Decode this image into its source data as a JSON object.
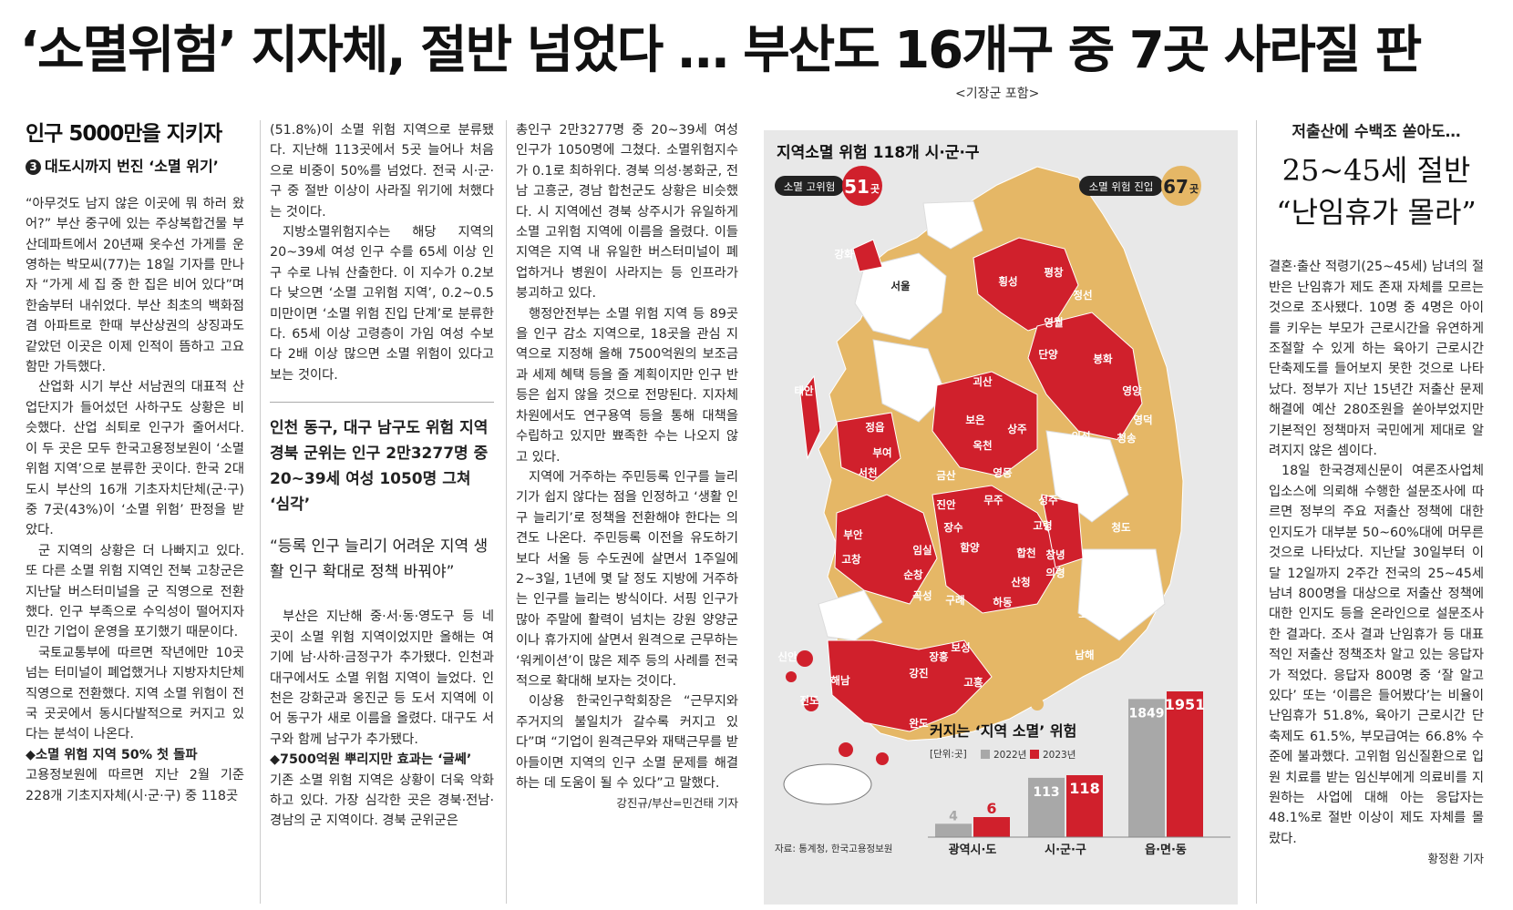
{
  "headline": "‘소멸위험’ 지자체, 절반 넘었다 … 부산도 16개구 중 7곳 사라질 판",
  "subhead": "<기장군 포함>",
  "col1": {
    "series_title": "인구 5000만을 지키자",
    "series_no": "3",
    "series_sub": "대도시까지 번진 ‘소멸 위기’",
    "paras": [
      "“아무것도 남지 않은 이곳에 뭐 하러 왔어?” 부산 중구에 있는 주상복합건물 부산데파트에서 20년째 옷수선 가게를 운영하는 박모씨(77)는 18일 기자를 만나자 “가게 세 집 중 한 집은 비어 있다”며 한숨부터 내쉬었다. 부산 최초의 백화점 겸 아파트로 한때 부산상권의 상징과도 같았던 이곳은 이제 인적이 뜸하고 고요함만 가득했다.",
      "산업화 시기 부산 서남권의 대표적 산업단지가 들어섰던 사하구도 상황은 비슷했다. 산업 쇠퇴로 인구가 줄어서다. 이 두 곳은 모두 한국고용정보원이 ‘소멸 위험 지역’으로 분류한 곳이다. 한국 2대 도시 부산의 16개 기초자치단체(군·구) 중 7곳(43%)이 ‘소멸 위험’ 판정을 받았다.",
      "군 지역의 상황은 더 나빠지고 있다. 또 다른 소멸 위험 지역인 전북 고창군은 지난달 버스터미널을 군 직영으로 전환했다. 인구 부족으로 수익성이 떨어지자 민간 기업이 운영을 포기했기 때문이다.",
      "국토교통부에 따르면 작년에만 10곳 넘는 터미널이 폐업했거나 지방자치단체 직영으로 전환했다. 지역 소멸 위험이 전국 곳곳에서 동시다발적으로 커지고 있다는 분석이 나온다."
    ],
    "diamond": "◆소멸 위험 지역 50% 첫 돌파",
    "tail": "고용정보원에 따르면 지난 2월 기준 228개 기초지자체(시·군·구) 중 118곳"
  },
  "col2": {
    "paras_top": [
      "(51.8%)이 소멸 위험 지역으로 분류됐다. 지난해 113곳에서 5곳 늘어나 처음으로 비중이 50%를 넘었다. 전국 시·군·구 중 절반 이상이 사라질 위기에 처했다는 것이다.",
      "지방소멸위험지수는 해당 지역의 20~39세 여성 인구 수를 65세 이상 인구 수로 나눠 산출한다. 이 지수가 0.2보다 낮으면 ‘소멸 고위험 지역’, 0.2~0.5 미만이면 ‘소멸 위험 진입 단계’로 분류한다. 65세 이상 고령층이 가임 여성 수보다 2배 이상 많으면 소멸 위험이 있다고 보는 것이다."
    ],
    "pull1": "인천 동구, 대구 남구도 위험 지역 경북 군위는 인구 2만3277명 중 20~39세 여성 1050명 그쳐 ‘심각’",
    "pull2": "“등록 인구 늘리기 어려운 지역 생활 인구 확대로 정책 바꿔야”",
    "paras_bottom": [
      "부산은 지난해 중·서·동·영도구 등 네 곳이 소멸 위험 지역이었지만 올해는 여기에 남·사하·금정구가 추가됐다. 인천과 대구에서도 소멸 위험 지역이 늘었다. 인천은 강화군과 옹진군 등 도서 지역에 이어 동구가 새로 이름을 올렸다. 대구도 서구와 함께 남구가 추가됐다."
    ],
    "diamond": "◆7500억원 뿌리지만 효과는 ‘글쎄’",
    "tail": "기존 소멸 위험 지역은 상황이 더욱 악화하고 있다. 가장 심각한 곳은 경북·전남·경남의 군 지역이다. 경북 군위군은"
  },
  "col3": {
    "paras": [
      "총인구 2만3277명 중 20~39세 여성 인구가 1050명에 그쳤다. 소멸위험지수가 0.1로 최하위다. 경북 의성·봉화군, 전남 고흥군, 경남 합천군도 상황은 비슷했다. 시 지역에선 경북 상주시가 유일하게 소멸 고위험 지역에 이름을 올렸다. 이들 지역은 지역 내 유일한 버스터미널이 폐업하거나 병원이 사라지는 등 인프라가 붕괴하고 있다.",
      "행정안전부는 소멸 위험 지역 등 89곳을 인구 감소 지역으로, 18곳을 관심 지역으로 지정해 올해 7500억원의 보조금과 세제 혜택 등을 줄 계획이지만 인구 반등은 쉽지 않을 것으로 전망된다. 지자체 차원에서도 연구용역 등을 통해 대책을 수립하고 있지만 뾰족한 수는 나오지 않고 있다.",
      "지역에 거주하는 주민등록 인구를 늘리기가 쉽지 않다는 점을 인정하고 ‘생활 인구 늘리기’로 정책을 전환해야 한다는 의견도 나온다. 주민등록 이전을 유도하기보다 서울 등 수도권에 살면서 1주일에 2~3일, 1년에 몇 달 정도 지방에 거주하는 인구를 늘리는 방식이다. 서핑 인구가 많아 주말에 활력이 넘치는 강원 양양군이나 휴가지에 살면서 원격으로 근무하는 ‘워케이션’이 많은 제주 등의 사례를 전국적으로 확대해 보자는 것이다.",
      "이상용 한국인구학회장은 “근무지와 주거지의 불일치가 갈수록 커지고 있다”며 “기업이 원격근무와 재택근무를 받아들이면 지역의 인구 소멸 문제를 해결하는 데 도움이 될 수 있다”고 말했다."
    ],
    "byline": "강진규/부산=민건태 기자"
  },
  "infographic": {
    "title": "지역소멸 위험 118개 시·군·구",
    "badge_high_label": "소멸 고위험",
    "badge_high_value": "51",
    "badge_high_unit": "곳",
    "badge_entry_label": "소멸 위험 진입",
    "badge_entry_value": "67",
    "badge_entry_unit": "곳",
    "colors": {
      "high": "#d0202c",
      "entry": "#e5b766",
      "none": "#ffffff",
      "bg": "#e8e8e8",
      "bar2022": "#a8a8a8"
    },
    "map_labels": [
      "강화",
      "서울",
      "횡성",
      "평창",
      "정선",
      "영월",
      "단양",
      "봉화",
      "태안",
      "괴산",
      "영양",
      "보은",
      "상주",
      "의성",
      "영덕",
      "청송",
      "정읍",
      "옥천",
      "부여",
      "서천",
      "금산",
      "영동",
      "군위",
      "진안",
      "무주",
      "성주",
      "고령",
      "부안",
      "장수",
      "창녕",
      "청도",
      "임실",
      "함양",
      "합천",
      "고창",
      "순창",
      "산청",
      "의령",
      "곡성",
      "구례",
      "하동",
      "함평",
      "고성",
      "신안",
      "장흥",
      "보성",
      "남해",
      "해남",
      "강진",
      "고흥",
      "진도",
      "완도"
    ],
    "source": "자료: 통계청, 한국고용정보원",
    "chart_title": "커지는 ‘지역 소멸’ 위험",
    "unit": "[단위:곳]"
  },
  "chart_data": {
    "type": "bar",
    "title": "커지는 ‘지역 소멸’ 위험",
    "unit": "[단위:곳]",
    "categories": [
      "광역시·도",
      "시·군·구",
      "읍·면·동"
    ],
    "series": [
      {
        "name": "2022년",
        "values": [
          4,
          113,
          1849
        ],
        "color": "#a8a8a8"
      },
      {
        "name": "2023년",
        "values": [
          6,
          118,
          1951
        ],
        "color": "#d0202c"
      }
    ]
  },
  "col5": {
    "kicker": "저출산에 수백조 쏟아도…",
    "big1": "25~45세 절반",
    "big2": "“난임휴가 몰라”",
    "paras": [
      "결혼·출산 적령기(25~45세) 남녀의 절반은 난임휴가 제도 존재 자체를 모르는 것으로 조사됐다. 10명 중 4명은 아이를 키우는 부모가 근로시간을 유연하게 조절할 수 있게 하는 육아기 근로시간 단축제도를 들어보지 못한 것으로 나타났다. 정부가 지난 15년간 저출산 문제 해결에 예산 280조원을 쏟아부었지만 기본적인 정책마저 국민에게 제대로 알려지지 않은 셈이다.",
      "18일 한국경제신문이 여론조사업체 입소스에 의뢰해 수행한 설문조사에 따르면 정부의 주요 저출산 정책에 대한 인지도가 대부분 50~60%대에 머무른 것으로 나타났다. 지난달 30일부터 이달 12일까지 2주간 전국의 25~45세 남녀 800명을 대상으로 저출산 정책에 대한 인지도 등을 온라인으로 설문조사한 결과다. 조사 결과 난임휴가 등 대표적인 저출산 정책조차 알고 있는 응답자가 적었다. 응답자 800명 중 ‘잘 알고 있다’ 또는 ‘이름은 들어봤다’는 비율이 난임휴가 51.8%, 육아기 근로시간 단축제도 61.5%, 부모급여는 66.8% 수준에 불과했다. 고위험 임신질환으로 입원 치료를 받는 임신부에게 의료비를 지원하는 사업에 대해 아는 응답자는 48.1%로 절반 이상이 제도 자체를 몰랐다."
    ],
    "byline": "황정환 기자"
  }
}
